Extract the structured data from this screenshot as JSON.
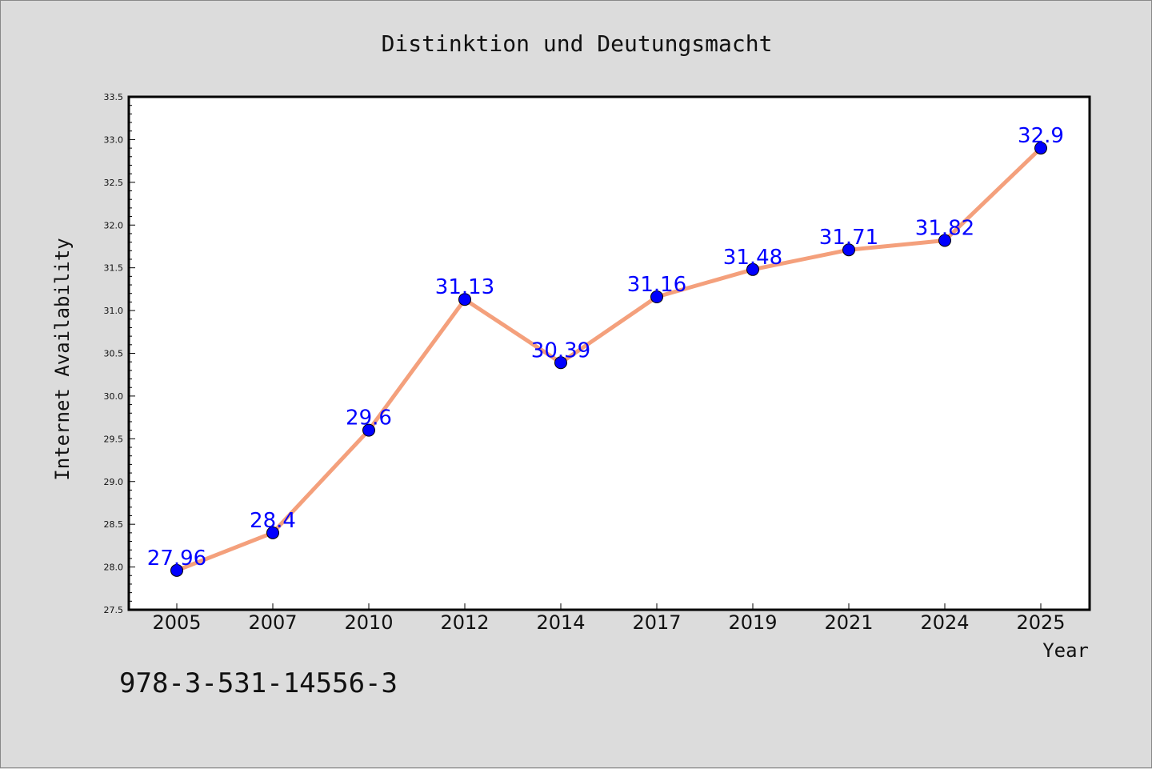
{
  "chart_data": {
    "type": "line",
    "title": "Distinktion und Deutungsmacht",
    "xlabel": "Year",
    "ylabel": "Internet Availability",
    "categories": [
      "2005",
      "2007",
      "2010",
      "2012",
      "2014",
      "2017",
      "2019",
      "2021",
      "2024",
      "2025"
    ],
    "series": [
      {
        "values": [
          27.96,
          28.4,
          29.6,
          31.13,
          30.39,
          31.16,
          31.48,
          31.71,
          31.82,
          32.9
        ],
        "labels": [
          "27.96",
          "28.4",
          "29.6",
          "31.13",
          "30.39",
          "31.16",
          "31.48",
          "31.71",
          "31.82",
          "32.9"
        ]
      }
    ],
    "ylim": [
      27.5,
      33.5
    ],
    "yticks": [
      "27.5",
      "28.0",
      "28.5",
      "29.0",
      "29.5",
      "30.0",
      "30.5",
      "31.0",
      "31.5",
      "32.0",
      "32.5",
      "33.0",
      "33.5"
    ],
    "grid": false,
    "legend": "none",
    "colors": {
      "line": "#f4a07c",
      "marker": "#0000ff",
      "data_label": "#0000ff",
      "plot_background": "#ffffff",
      "figure_background": "#dcdcdc"
    }
  },
  "footer": {
    "isbn": "978-3-531-14556-3"
  }
}
